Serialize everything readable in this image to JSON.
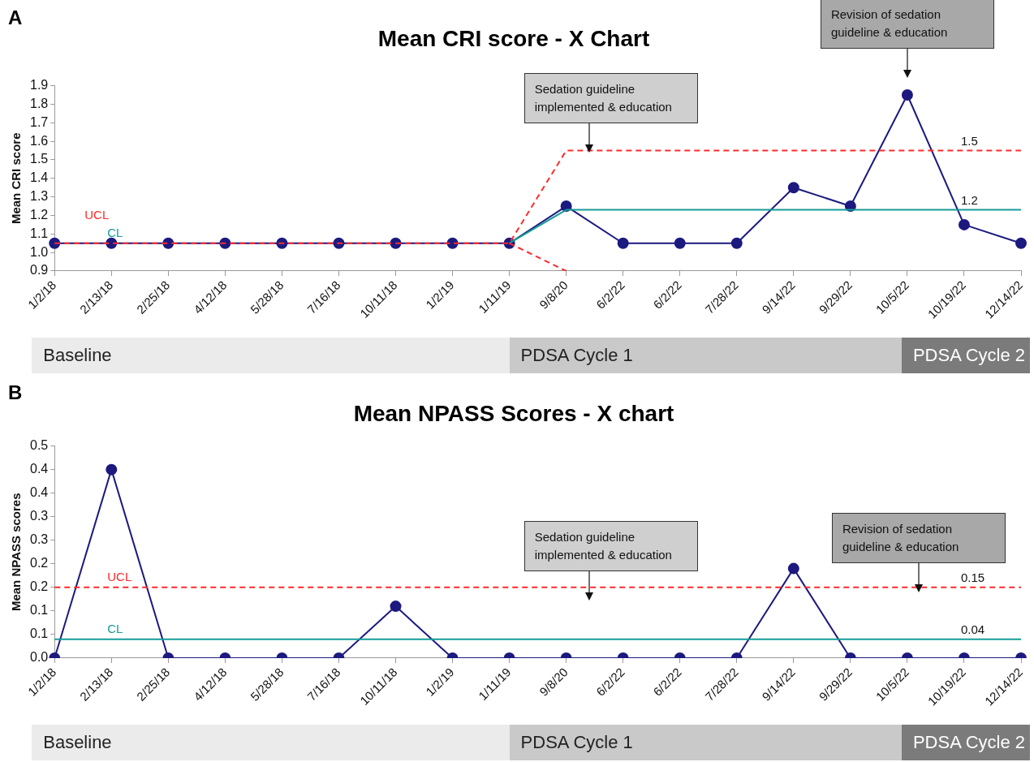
{
  "chart_data": [
    {
      "type": "line",
      "title": "Mean CRI score - X Chart",
      "ylabel": "Mean CRI score",
      "categories": [
        "1/2/18",
        "2/13/18",
        "2/25/18",
        "4/12/18",
        "5/28/18",
        "7/16/18",
        "10/11/18",
        "1/2/19",
        "1/11/19",
        "9/8/20",
        "6/2/22",
        "6/2/22",
        "7/28/22",
        "9/14/22",
        "9/29/22",
        "10/5/22",
        "10/19/22",
        "12/14/22"
      ],
      "series": [
        {
          "color": "#1c1a7f",
          "marker": "circle",
          "line_style": "solid",
          "values": [
            1.05,
            1.05,
            1.05,
            1.05,
            1.05,
            1.05,
            1.05,
            1.05,
            1.05,
            1.25,
            1.05,
            1.05,
            1.05,
            1.35,
            1.25,
            1.85,
            1.15,
            1.05
          ]
        },
        {
          "name": "CL",
          "color": "#169c98",
          "marker": "none",
          "line_style": "solid",
          "values": [
            null,
            null,
            null,
            null,
            null,
            null,
            null,
            null,
            1.05,
            1.23,
            1.23,
            1.23,
            1.23,
            1.23,
            1.23,
            1.23,
            1.23,
            1.23
          ],
          "value_labels": [
            null,
            null,
            null,
            null,
            null,
            null,
            null,
            null,
            null,
            null,
            null,
            null,
            null,
            null,
            null,
            null,
            "1.2",
            null
          ]
        },
        {
          "name": "UCL",
          "color": "#ff2a2a",
          "marker": "none",
          "line_style": "dashed",
          "values": [
            1.05,
            1.05,
            1.05,
            1.05,
            1.05,
            1.05,
            1.05,
            1.05,
            1.05,
            1.55,
            1.55,
            1.55,
            1.55,
            1.55,
            1.55,
            1.55,
            1.55,
            1.55
          ],
          "value_labels": [
            null,
            null,
            null,
            null,
            null,
            null,
            null,
            null,
            null,
            null,
            null,
            null,
            null,
            null,
            null,
            null,
            "1.5",
            null
          ]
        },
        {
          "color": "#ff2a2a",
          "marker": "none",
          "line_style": "dashed",
          "values": [
            null,
            null,
            null,
            null,
            null,
            null,
            null,
            null,
            1.05,
            0.9,
            null,
            null,
            null,
            null,
            null,
            null,
            null,
            null
          ]
        }
      ],
      "ylim": [
        0.9,
        1.9
      ],
      "yticks": [
        0.9,
        {
          "value": 1,
          "label": "1.0"
        },
        1.1,
        1.2,
        1.3,
        1.4,
        1.5,
        1.6,
        1.7,
        1.8,
        1.9
      ],
      "annotations": [
        "A",
        "Baseline",
        "PDSA Cycle 1",
        "PDSA Cycle 2",
        "Sedation guideline implemented & education",
        "Revision of sedation guideline & education"
      ]
    },
    {
      "type": "line",
      "title": "Mean NPASS Scores - X chart",
      "ylabel": "Mean NPASS scores",
      "categories": [
        "1/2/18",
        "2/13/18",
        "2/25/18",
        "4/12/18",
        "5/28/18",
        "7/16/18",
        "10/11/18",
        "1/2/19",
        "1/11/19",
        "9/8/20",
        "6/2/22",
        "6/2/22",
        "7/28/22",
        "9/14/22",
        "9/29/22",
        "10/5/22",
        "10/19/22",
        "12/14/22"
      ],
      "series": [
        {
          "color": "#1c1a7f",
          "marker": "circle",
          "line_style": "solid",
          "values": [
            0,
            0.4,
            0,
            0,
            0,
            0,
            0.11,
            0,
            0,
            0,
            0,
            0,
            0,
            0.19,
            0,
            0,
            0,
            0
          ]
        },
        {
          "name": "UCL",
          "color": "#ff2a2a",
          "marker": "none",
          "line_style": "dashed",
          "values": [
            0.15,
            0.15,
            0.15,
            0.15,
            0.15,
            0.15,
            0.15,
            0.15,
            0.15,
            0.15,
            0.15,
            0.15,
            0.15,
            0.15,
            0.15,
            0.15,
            0.15,
            0.15
          ],
          "value_labels": [
            null,
            null,
            null,
            null,
            null,
            null,
            null,
            null,
            null,
            null,
            null,
            null,
            null,
            null,
            null,
            null,
            "0.15",
            null
          ]
        },
        {
          "name": "CL",
          "color": "#169c98",
          "marker": "none",
          "line_style": "solid",
          "values": [
            0.04,
            0.04,
            0.04,
            0.04,
            0.04,
            0.04,
            0.04,
            0.04,
            0.04,
            0.04,
            0.04,
            0.04,
            0.04,
            0.04,
            0.04,
            0.04,
            0.04,
            0.04
          ],
          "value_labels": [
            null,
            null,
            null,
            null,
            null,
            null,
            null,
            null,
            null,
            null,
            null,
            null,
            null,
            null,
            null,
            null,
            "0.04",
            null
          ]
        }
      ],
      "ylim": [
        0,
        0.45
      ],
      "yticks": [
        {
          "value": 0,
          "label": "0.0"
        },
        {
          "value": 0.05,
          "label": "0.1"
        },
        {
          "value": 0.1,
          "label": "0.1"
        },
        {
          "value": 0.15,
          "label": "0.2"
        },
        {
          "value": 0.2,
          "label": "0.2"
        },
        {
          "value": 0.25,
          "label": "0.3"
        },
        {
          "value": 0.3,
          "label": "0.3"
        },
        {
          "value": 0.35,
          "label": "0.4"
        },
        {
          "value": 0.4,
          "label": "0.4"
        },
        {
          "value": 0.45,
          "label": "0.5"
        }
      ],
      "annotations": [
        "B",
        "Baseline",
        "PDSA Cycle 1",
        "PDSA Cycle 2",
        "Sedation guideline implemented & education",
        "Revision of sedation guideline & education"
      ]
    }
  ]
}
